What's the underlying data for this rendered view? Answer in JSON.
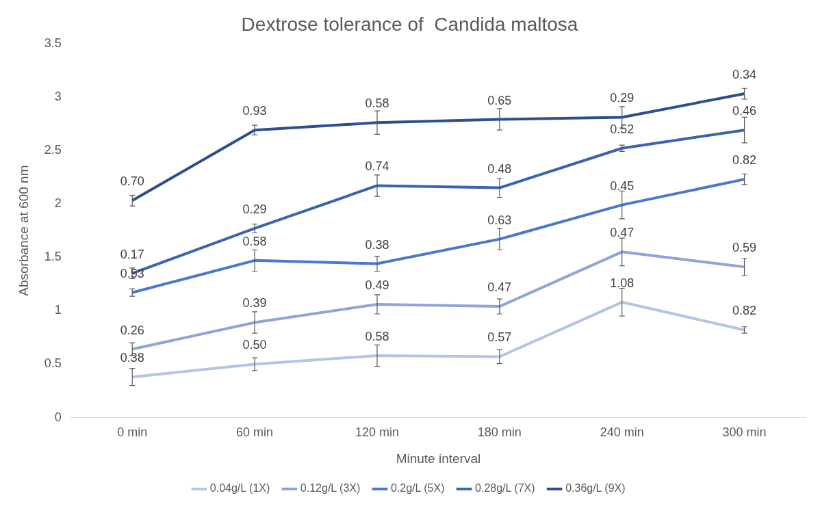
{
  "chart_data": {
    "type": "line",
    "title": "Dextrose tolerance of  Candida maltosa",
    "xlabel": "Minute interval",
    "ylabel": "Absorbance at 600 nm",
    "categories": [
      "0 min",
      "60 min",
      "120 min",
      "180 min",
      "240 min",
      "300 min"
    ],
    "ylim": [
      0,
      3.5
    ],
    "yticks": [
      0,
      0.5,
      1,
      1.5,
      2,
      2.5,
      3,
      3.5
    ],
    "grid": false,
    "legend": "bottom",
    "marker": "none",
    "line_style": "solid",
    "series": [
      {
        "name": "0.04g/L (1X)",
        "color": "#b4c3e6",
        "values": [
          0.38,
          0.5,
          0.58,
          0.57,
          1.08,
          0.82
        ],
        "errors": [
          0.08,
          0.06,
          0.1,
          0.065,
          0.13,
          0.03
        ],
        "value_labels": [
          "0.38",
          "0.50",
          "0.58",
          "0.57",
          "1.08",
          "0.82"
        ]
      },
      {
        "name": "0.12g/L (3X)",
        "color": "#8ea5d8",
        "values": [
          0.64,
          0.89,
          1.06,
          1.04,
          1.55,
          1.41
        ],
        "errors": [
          0.06,
          0.1,
          0.09,
          0.07,
          0.13,
          0.08
        ]
      },
      {
        "name": "0.2g/L (5X)",
        "color": "#4a78cf",
        "values": [
          1.17,
          1.47,
          1.44,
          1.67,
          1.99,
          2.23
        ],
        "errors": [
          0.035,
          0.1,
          0.07,
          0.1,
          0.13,
          0.05
        ]
      },
      {
        "name": "0.28g/L (7X)",
        "color": "#3b63b2",
        "values": [
          1.35,
          1.77,
          2.17,
          2.15,
          2.52,
          2.69
        ],
        "errors": [
          0.05,
          0.04,
          0.1,
          0.09,
          0.03,
          0.12
        ]
      },
      {
        "name": "0.36g/L (9X)",
        "color": "#2e4f8e",
        "values": [
          2.03,
          2.69,
          2.76,
          2.79,
          2.81,
          3.03
        ],
        "errors": [
          0.05,
          0.045,
          0.11,
          0.1,
          0.1,
          0.05
        ]
      }
    ],
    "annotations": [
      {
        "text": "0.26",
        "x": "0 min",
        "y": 0.64
      },
      {
        "text": "0.39",
        "x": "60 min",
        "y": 0.89
      },
      {
        "text": "0.49",
        "x": "120 min",
        "y": 1.06
      },
      {
        "text": "0.47",
        "x": "180 min",
        "y": 1.04
      },
      {
        "text": "0.47",
        "x": "240 min",
        "y": 1.55
      },
      {
        "text": "0.59",
        "x": "300 min",
        "y": 1.41
      },
      {
        "text": "0.53",
        "x": "0 min",
        "y": 1.17
      },
      {
        "text": "0.58",
        "x": "60 min",
        "y": 1.47
      },
      {
        "text": "0.38",
        "x": "120 min",
        "y": 1.44
      },
      {
        "text": "0.63",
        "x": "180 min",
        "y": 1.67
      },
      {
        "text": "0.45",
        "x": "240 min",
        "y": 1.99
      },
      {
        "text": "0.82",
        "x": "300 min",
        "y": 2.23
      },
      {
        "text": "0.17",
        "x": "0 min",
        "y": 1.35
      },
      {
        "text": "0.29",
        "x": "60 min",
        "y": 1.77
      },
      {
        "text": "0.74",
        "x": "120 min",
        "y": 2.17
      },
      {
        "text": "0.48",
        "x": "180 min",
        "y": 2.15
      },
      {
        "text": "0.52",
        "x": "240 min",
        "y": 2.52
      },
      {
        "text": "0.46",
        "x": "300 min",
        "y": 2.69
      },
      {
        "text": "0.70",
        "x": "0 min",
        "y": 2.03
      },
      {
        "text": "0.93",
        "x": "60 min",
        "y": 2.69
      },
      {
        "text": "0.58",
        "x": "120 min",
        "y": 2.76
      },
      {
        "text": "0.65",
        "x": "180 min",
        "y": 2.79
      },
      {
        "text": "0.29",
        "x": "240 min",
        "y": 2.81
      },
      {
        "text": "0.34",
        "x": "300 min",
        "y": 3.03
      }
    ]
  }
}
